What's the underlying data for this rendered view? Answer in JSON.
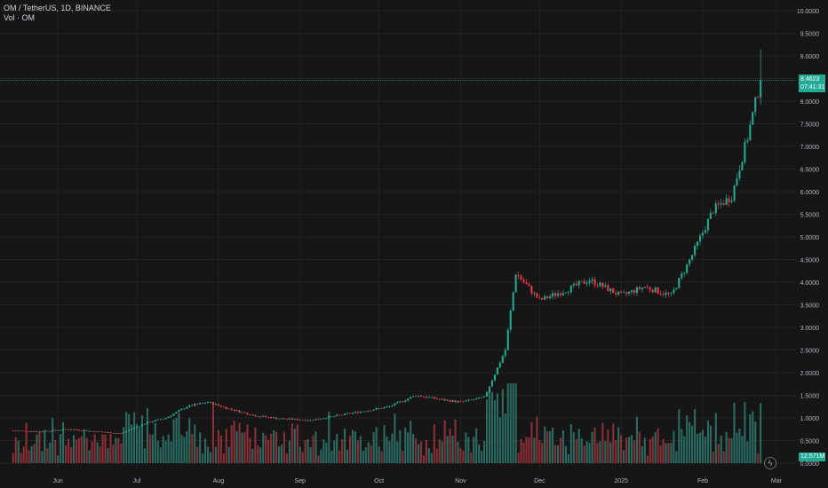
{
  "legend": {
    "symbol_line": "OM / TetherUS, 1D, BINANCE",
    "volume_line": "Vol · OM"
  },
  "last_price": {
    "value": "8.4623",
    "countdown": "07:41:31",
    "numeric": 8.4623
  },
  "volume_badge": "12.571M",
  "colors": {
    "up": "#22ab94",
    "down": "#f23645",
    "up_volume": "#2a6b62",
    "down_volume": "#8c2f36",
    "background": "#161616",
    "grid": "#232323",
    "text": "#b2b5be"
  },
  "chart_data": {
    "type": "candlestick",
    "title": "OM / TetherUS, 1D, BINANCE",
    "x_ticks": [
      "Jun",
      "Jul",
      "Aug",
      "Sep",
      "Oct",
      "Nov",
      "Dec",
      "2025",
      "Feb",
      "Mar"
    ],
    "y_ticks": [
      "10.0000",
      "9.5000",
      "9.0000",
      "8.5000",
      "8.0000",
      "7.5000",
      "7.0000",
      "6.5000",
      "6.0000",
      "5.5000",
      "5.0000",
      "4.5000",
      "4.0000",
      "3.5000",
      "3.0000",
      "2.5000",
      "2.0000",
      "1.5000",
      "1.0000",
      "0.5000",
      "0.0000"
    ],
    "ylim": [
      0,
      10
    ],
    "grid": true,
    "price_series": [
      {
        "date": "2024-05-15",
        "close": 0.72
      },
      {
        "date": "2024-05-25",
        "close": 0.7
      },
      {
        "date": "2024-06-05",
        "close": 0.75
      },
      {
        "date": "2024-06-15",
        "close": 0.7
      },
      {
        "date": "2024-06-25",
        "close": 0.66
      },
      {
        "date": "2024-07-05",
        "close": 0.9
      },
      {
        "date": "2024-07-12",
        "close": 1.0
      },
      {
        "date": "2024-07-20",
        "close": 1.25
      },
      {
        "date": "2024-07-28",
        "close": 1.35
      },
      {
        "date": "2024-08-05",
        "close": 1.2
      },
      {
        "date": "2024-08-15",
        "close": 1.05
      },
      {
        "date": "2024-08-25",
        "close": 0.98
      },
      {
        "date": "2024-09-05",
        "close": 0.95
      },
      {
        "date": "2024-09-15",
        "close": 1.05
      },
      {
        "date": "2024-09-25",
        "close": 1.15
      },
      {
        "date": "2024-10-05",
        "close": 1.25
      },
      {
        "date": "2024-10-15",
        "close": 1.5
      },
      {
        "date": "2024-10-25",
        "close": 1.4
      },
      {
        "date": "2024-11-01",
        "close": 1.35
      },
      {
        "date": "2024-11-10",
        "close": 1.45
      },
      {
        "date": "2024-11-18",
        "close": 2.5
      },
      {
        "date": "2024-11-22",
        "close": 4.2
      },
      {
        "date": "2024-12-01",
        "close": 3.6
      },
      {
        "date": "2024-12-10",
        "close": 3.8
      },
      {
        "date": "2024-12-20",
        "close": 4.05
      },
      {
        "date": "2025-01-01",
        "close": 3.7
      },
      {
        "date": "2025-01-10",
        "close": 3.9
      },
      {
        "date": "2025-01-20",
        "close": 3.7
      },
      {
        "date": "2025-01-28",
        "close": 4.6
      },
      {
        "date": "2025-02-05",
        "close": 5.6
      },
      {
        "date": "2025-02-12",
        "close": 5.9
      },
      {
        "date": "2025-02-18",
        "close": 7.2
      },
      {
        "date": "2025-02-23",
        "close": 8.46
      }
    ],
    "last_close": 8.4623,
    "last_high": 9.15
  }
}
